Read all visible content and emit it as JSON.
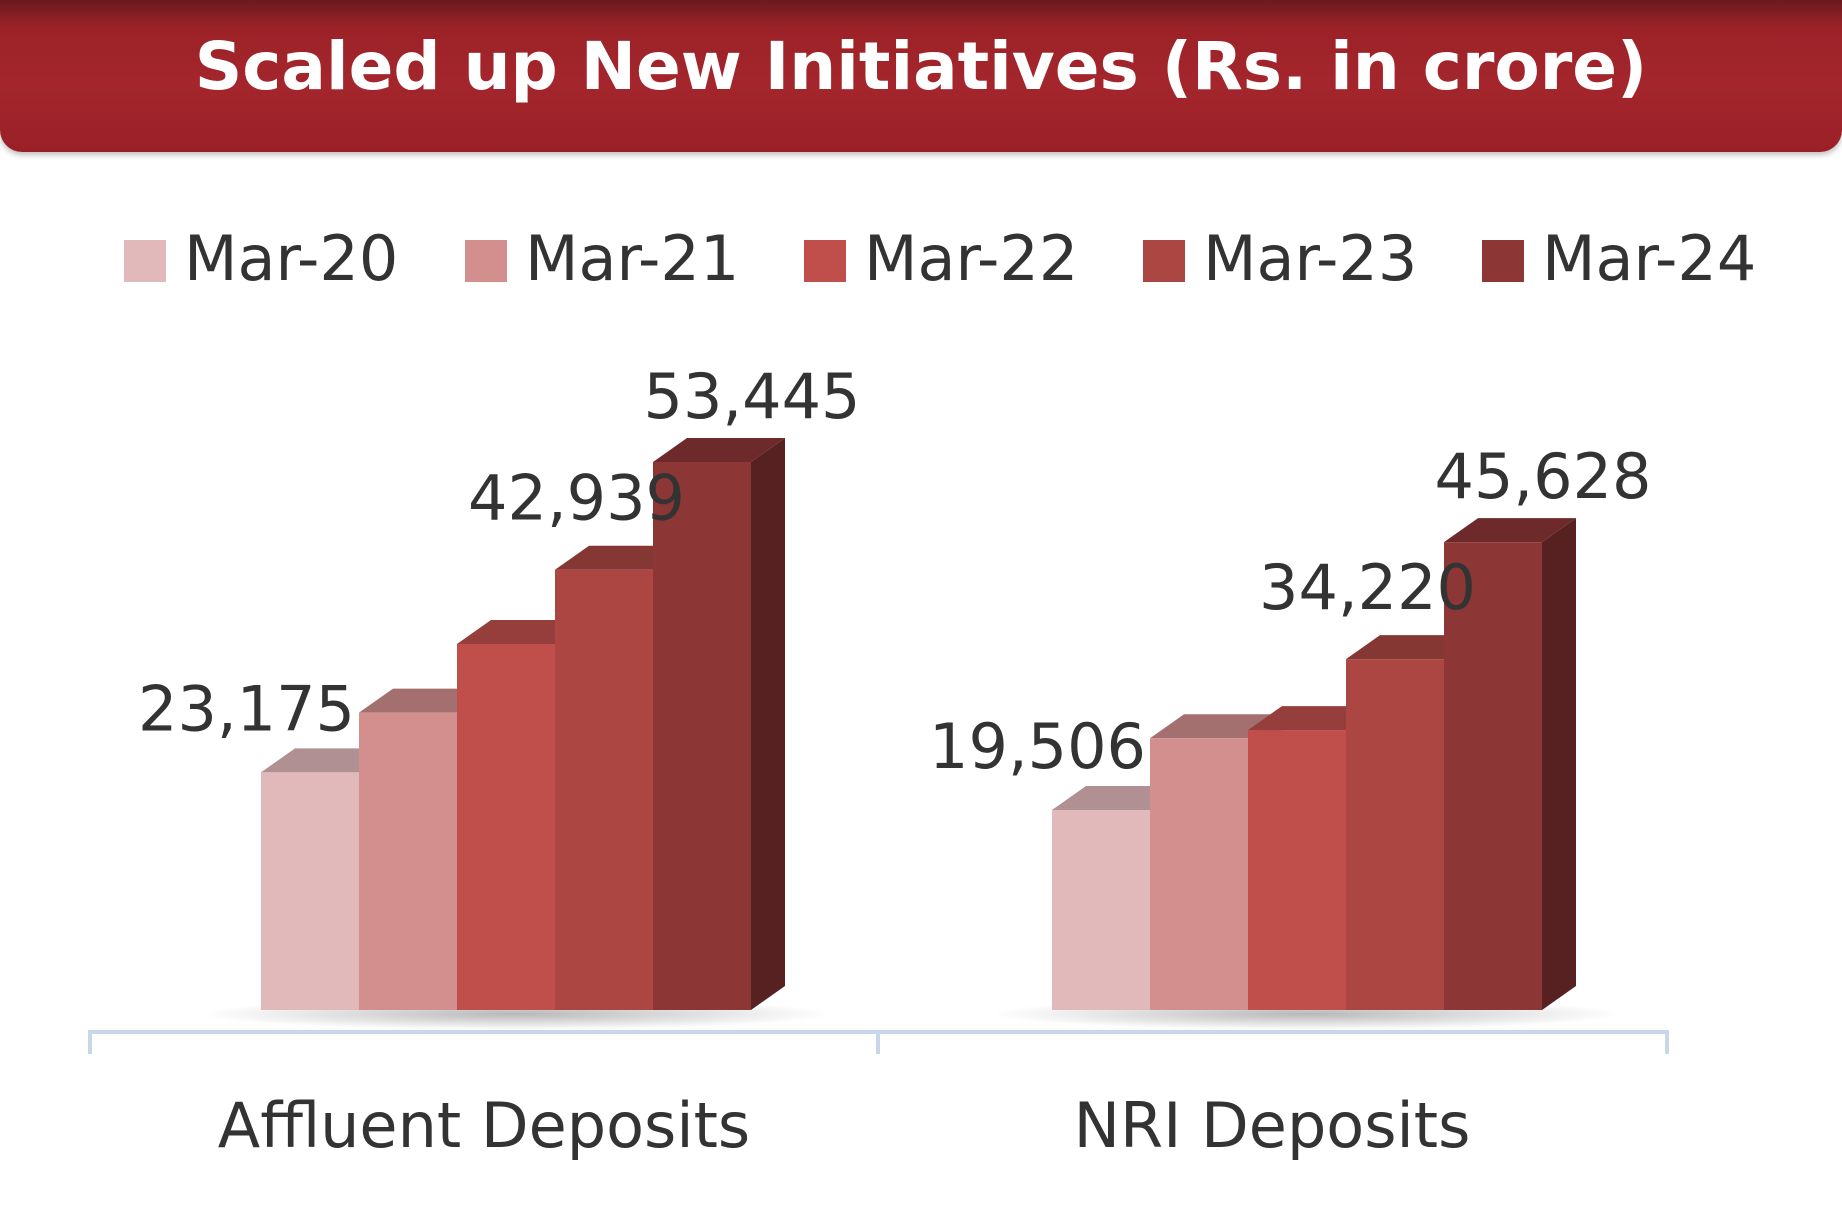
{
  "title": "Scaled up New Initiatives (Rs. in crore)",
  "chart_data": {
    "type": "bar",
    "categories": [
      "Affluent Deposits",
      "NRI Deposits"
    ],
    "series": [
      {
        "name": "Mar-20",
        "color": "#e2b9bb",
        "values": [
          23175,
          19506
        ]
      },
      {
        "name": "Mar-21",
        "color": "#d28f8e",
        "values": [
          29000,
          26500
        ]
      },
      {
        "name": "Mar-22",
        "color": "#c04f4b",
        "values": [
          35700,
          27300
        ]
      },
      {
        "name": "Mar-23",
        "color": "#ab4642",
        "values": [
          42939,
          34220
        ]
      },
      {
        "name": "Mar-24",
        "color": "#8d3636",
        "values": [
          53445,
          45628
        ]
      }
    ],
    "data_labels": [
      [
        23175,
        null,
        null,
        42939,
        53445
      ],
      [
        19506,
        null,
        null,
        34220,
        45628
      ]
    ],
    "legend_position": "top",
    "grid": false,
    "ylim": [
      0,
      56000
    ]
  }
}
